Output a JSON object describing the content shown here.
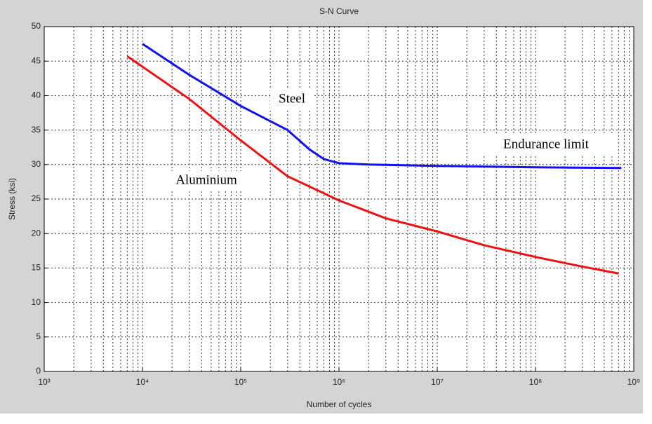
{
  "chart_data": {
    "type": "line",
    "title": "S-N Curve",
    "x_label": "Number of cycles",
    "y_label": "Stress (ksi)",
    "xscale": "log",
    "grid": true,
    "minor_grid": true,
    "xlim": [
      1000,
      1000000000
    ],
    "xticks": [
      {
        "value": 1000,
        "label": "10³"
      },
      {
        "value": 10000,
        "label": "10⁴"
      },
      {
        "value": 100000,
        "label": "10⁵"
      },
      {
        "value": 1000000,
        "label": "10⁶"
      },
      {
        "value": 10000000,
        "label": "10⁷"
      },
      {
        "value": 100000000,
        "label": "10⁸"
      },
      {
        "value": 1000000000,
        "label": "10⁹"
      }
    ],
    "ylim": [
      0,
      50
    ],
    "yticks": [
      0,
      5,
      10,
      15,
      20,
      25,
      30,
      35,
      40,
      45,
      50
    ],
    "series": [
      {
        "name": "Steel",
        "color": "#1010f0",
        "x": [
          10000,
          30000,
          100000,
          300000,
          500000,
          700000,
          1000000,
          2000000,
          10000000,
          100000000,
          750000000
        ],
        "values": [
          47.5,
          43,
          38.5,
          35,
          32.2,
          30.8,
          30.2,
          30,
          29.8,
          29.6,
          29.5
        ]
      },
      {
        "name": "Aluminium",
        "color": "#f01010",
        "x": [
          7000,
          30000,
          100000,
          300000,
          1000000,
          3000000,
          10000000,
          30000000,
          100000000,
          300000000,
          700000000
        ],
        "values": [
          45.7,
          39.5,
          33.5,
          28.3,
          24.8,
          22.2,
          20.3,
          18.3,
          16.6,
          15.2,
          14.2
        ]
      }
    ],
    "annotations": [
      "Endurance limit"
    ]
  }
}
